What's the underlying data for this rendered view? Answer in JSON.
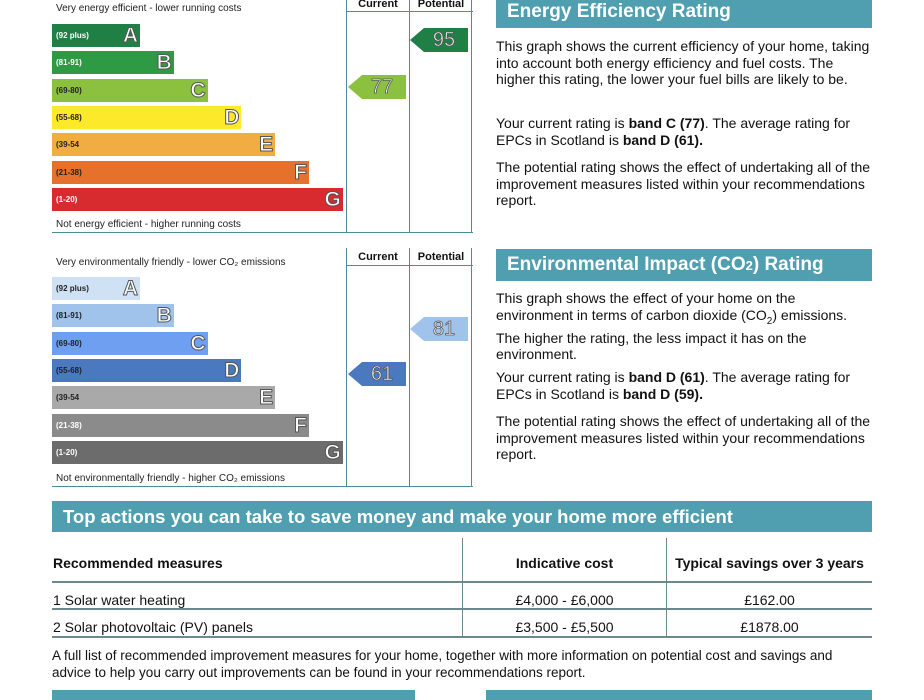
{
  "energy_chart": {
    "top_caption": "Very energy efficient - lower running costs",
    "bottom_caption": "Not energy efficient - higher running costs",
    "col_current": "Current",
    "col_potential": "Potential",
    "bands": [
      {
        "range": "(92 plus)",
        "letter": "A",
        "color": "#1f7f45"
      },
      {
        "range": "(81-91)",
        "letter": "B",
        "color": "#2f9a44"
      },
      {
        "range": "(69-80)",
        "letter": "C",
        "color": "#8cc03f"
      },
      {
        "range": "(55-68)",
        "letter": "D",
        "color": "#fbe92a"
      },
      {
        "range": "(39-54",
        "letter": "E",
        "color": "#f1ac42"
      },
      {
        "range": "(21-38)",
        "letter": "F",
        "color": "#e5712d"
      },
      {
        "range": "(1-20)",
        "letter": "G",
        "color": "#d82b2f"
      }
    ],
    "current": "77",
    "current_color": "#8cc03f",
    "potential": "95",
    "potential_color": "#1f7f45"
  },
  "env_chart": {
    "top_caption": "Very environmentally friendly - lower CO₂ emissions",
    "bottom_caption": "Not environmentally friendly - higher CO₂ emissions",
    "col_current": "Current",
    "col_potential": "Potential",
    "bands": [
      {
        "range": "(92 plus)",
        "letter": "A",
        "color": "#cfe1f4"
      },
      {
        "range": "(81-91)",
        "letter": "B",
        "color": "#9fc3ea"
      },
      {
        "range": "(69-80)",
        "letter": "C",
        "color": "#6f9ff0"
      },
      {
        "range": "(55-68)",
        "letter": "D",
        "color": "#4b79bf"
      },
      {
        "range": "(39-54",
        "letter": "E",
        "color": "#a9a9a9"
      },
      {
        "range": "(21-38)",
        "letter": "F",
        "color": "#8b8b8b"
      },
      {
        "range": "(1-20)",
        "letter": "G",
        "color": "#6c6c6c"
      }
    ],
    "current": "61",
    "current_color": "#4b79bf",
    "potential": "81",
    "potential_color": "#9fc3ea"
  },
  "energy_info": {
    "heading": "Energy Efficiency Rating",
    "p1": "This graph shows the current efficiency of your home, taking into account both energy efficiency and fuel costs. The higher this rating, the lower your fuel bills are likely to be.",
    "p2_a": "Your current rating is ",
    "p2_b": "band C (77)",
    "p2_c": ". The average rating for EPCs in Scotland is ",
    "p2_d": "band D (61).",
    "p3": "The potential rating shows the effect of undertaking all of the improvement measures listed within your recommendations report."
  },
  "env_info": {
    "heading_a": "Environmental Impact (CO",
    "heading_sub": "2",
    "heading_b": ") Rating",
    "p1_a": "This graph shows the effect of your home on the environment in terms of carbon dioxide (CO",
    "p1_sub": "2",
    "p1_b": ") emissions. The higher the rating, the less impact it has on the environment.",
    "p2_a": "Your current rating is ",
    "p2_b": "band D (61)",
    "p2_c": ". The average rating for EPCs in Scotland is ",
    "p2_d": "band D (59).",
    "p3": "The potential rating shows the effect of undertaking all of the improvement measures listed within your recommendations report."
  },
  "actions": {
    "heading": "Top actions you can take to save money and make your home more efficient",
    "headers": [
      "Recommended measures",
      "Indicative cost",
      "Typical savings over 3 years"
    ],
    "rows": [
      [
        "1 Solar water heating",
        "£4,000 - £6,000",
        "£162.00"
      ],
      [
        "2 Solar photovoltaic (PV) panels",
        "£3,500 - £5,500",
        "£1878.00"
      ]
    ],
    "footer": "A full list of recommended improvement measures for your home, together with more information on potential cost and savings and advice to help you carry out improvements can be found in your recommendations report."
  }
}
